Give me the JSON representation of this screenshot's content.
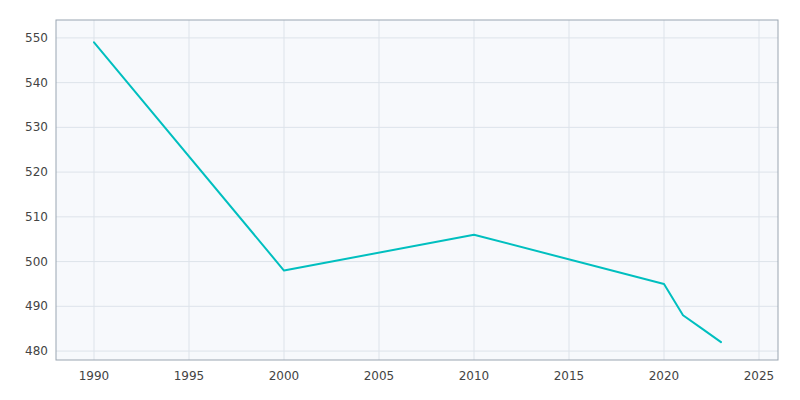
{
  "chart_data": {
    "type": "line",
    "x": [
      1990,
      2000,
      2010,
      2020,
      2021,
      2022,
      2023
    ],
    "values": [
      549,
      498,
      506,
      495,
      488,
      485,
      482
    ],
    "color": "#00BFBF",
    "xlim": [
      1988,
      2026
    ],
    "ylim": [
      478,
      554
    ],
    "xticks": [
      1990,
      1995,
      2000,
      2005,
      2010,
      2015,
      2020,
      2025
    ],
    "yticks": [
      480,
      490,
      500,
      510,
      520,
      530,
      540,
      550
    ],
    "grid": true
  }
}
